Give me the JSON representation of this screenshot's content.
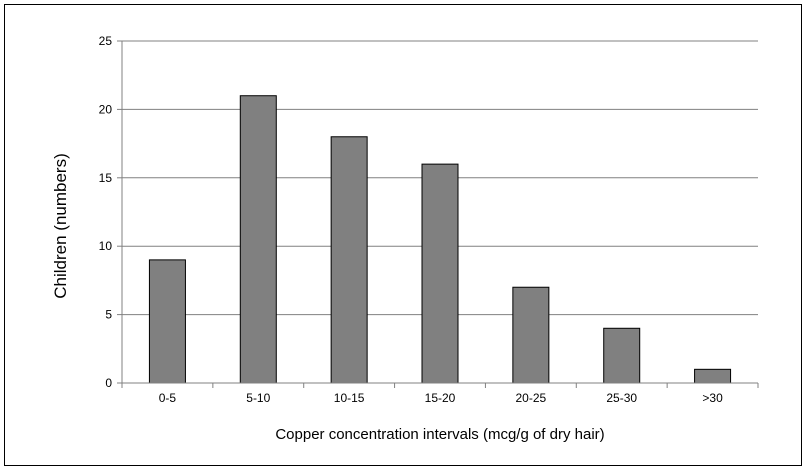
{
  "chart_data": {
    "type": "bar",
    "categories": [
      "0-5",
      "5-10",
      "10-15",
      "15-20",
      "20-25",
      "25-30",
      ">30"
    ],
    "values": [
      9,
      21,
      18,
      16,
      7,
      4,
      1
    ],
    "xlabel": "Copper concentration intervals (mcg/g of dry hair)",
    "ylabel": "Children (numbers)",
    "ylim": [
      0,
      25
    ],
    "yticks": [
      0,
      5,
      10,
      15,
      20,
      25
    ],
    "grid": true,
    "colors": {
      "bar": "#808080",
      "bar_edge": "#000000",
      "grid": "#808080"
    }
  }
}
